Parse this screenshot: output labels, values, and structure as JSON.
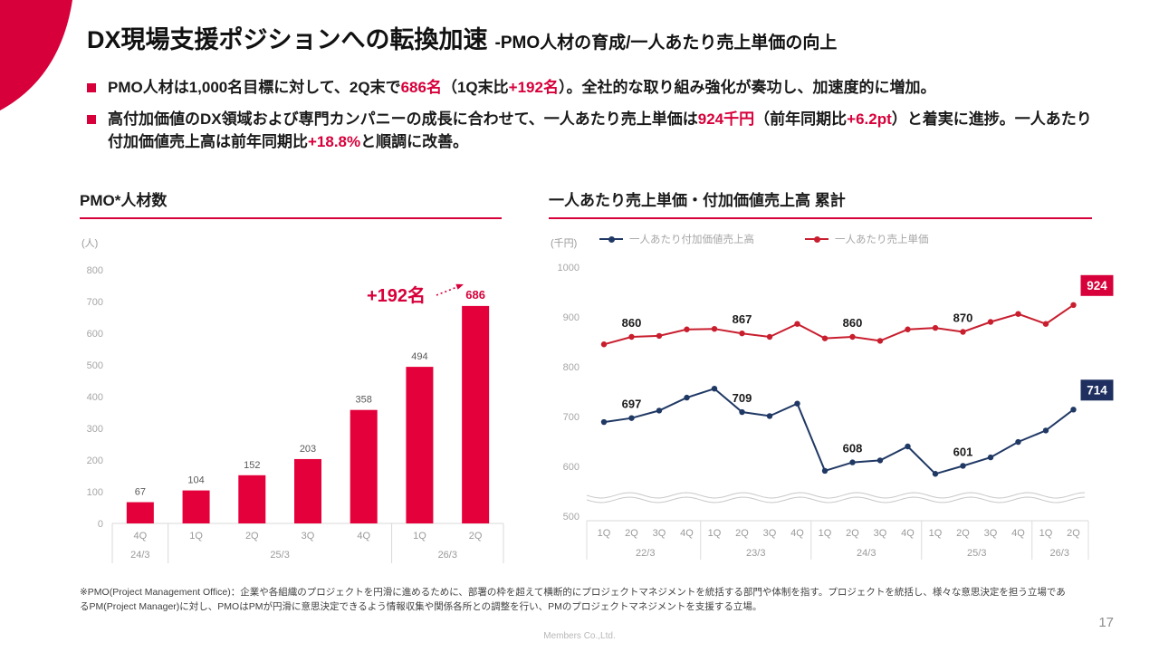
{
  "header": {
    "title_main": "DX現場支援ポジションへの転換加速",
    "title_sub": "-PMO人材の育成/一人あたり売上単価の向上"
  },
  "bullets": [
    {
      "segments": [
        {
          "text": "PMO人材は1,000名目標に対して、2Q末で",
          "accent": false
        },
        {
          "text": "686名",
          "accent": true
        },
        {
          "text": "（1Q末比",
          "accent": false
        },
        {
          "text": "+192名",
          "accent": true
        },
        {
          "text": "）。全社的な取り組み強化が奏功し、加速度的に増加。",
          "accent": false
        }
      ]
    },
    {
      "segments": [
        {
          "text": "高付加価値のDX領域および専門カンパニーの成長に合わせて、一人あたり売上単価は",
          "accent": false
        },
        {
          "text": "924千円",
          "accent": true
        },
        {
          "text": "（前年同期比",
          "accent": false
        },
        {
          "text": "+6.2pt",
          "accent": true
        },
        {
          "text": "）と着実に進捗。一人あたり付加価値売上高は前年同期比",
          "accent": false
        },
        {
          "text": "+18.8%",
          "accent": true
        },
        {
          "text": "と順調に改善。",
          "accent": false
        }
      ]
    }
  ],
  "colors": {
    "accent": "#d7003a",
    "bar": "#e4003a",
    "line_blue": "#1f3864",
    "line_red": "#c81e2e",
    "box_blue": "#1f3060",
    "box_red": "#d7003a",
    "axis_text": "#a6a6a6",
    "value_label": "#595959",
    "separator": "#d9d9d9",
    "tick_text": "#9a9a9a"
  },
  "chart_data": [
    {
      "type": "bar",
      "title": "PMO*人材数",
      "unit": "(人)",
      "categories": [
        "4Q",
        "1Q",
        "2Q",
        "3Q",
        "4Q",
        "1Q",
        "2Q"
      ],
      "year_groups": [
        {
          "label": "24/3",
          "span": 1
        },
        {
          "label": "25/3",
          "span": 4
        },
        {
          "label": "26/3",
          "span": 2
        }
      ],
      "values": [
        67,
        104,
        152,
        203,
        358,
        494,
        686
      ],
      "ylim": [
        0,
        800
      ],
      "ytick_step": 100,
      "annotation": "+192名",
      "bar_color": "#e4003a",
      "grid": false,
      "legend_position": "none"
    },
    {
      "type": "line",
      "title": "一人あたり売上単価・付加価値売上高 累計",
      "unit": "(千円)",
      "categories": [
        "1Q",
        "2Q",
        "3Q",
        "4Q",
        "1Q",
        "2Q",
        "3Q",
        "4Q",
        "1Q",
        "2Q",
        "3Q",
        "4Q",
        "1Q",
        "2Q",
        "3Q",
        "4Q",
        "1Q",
        "2Q"
      ],
      "year_groups": [
        {
          "label": "22/3",
          "span": 4
        },
        {
          "label": "23/3",
          "span": 4
        },
        {
          "label": "24/3",
          "span": 4
        },
        {
          "label": "25/3",
          "span": 4
        },
        {
          "label": "26/3",
          "span": 2
        }
      ],
      "series": [
        {
          "name": "一人あたり付加価値売上高",
          "color": "#1f3864",
          "values": [
            689,
            697,
            712,
            738,
            756,
            709,
            701,
            726,
            591,
            608,
            612,
            640,
            585,
            601,
            618,
            649,
            672,
            714
          ],
          "labeled_points": [
            {
              "index": 1,
              "value": "697"
            },
            {
              "index": 5,
              "value": "709"
            },
            {
              "index": 9,
              "value": "608"
            },
            {
              "index": 13,
              "value": "601"
            }
          ],
          "final_label": {
            "index": 17,
            "value": "714",
            "box_color": "#1f3060"
          }
        },
        {
          "name": "一人あたり売上単価",
          "color": "#c81e2e",
          "values": [
            845,
            860,
            862,
            875,
            876,
            867,
            860,
            886,
            857,
            860,
            852,
            875,
            878,
            870,
            890,
            906,
            886,
            924
          ],
          "labeled_points": [
            {
              "index": 1,
              "value": "860"
            },
            {
              "index": 5,
              "value": "867"
            },
            {
              "index": 9,
              "value": "860"
            },
            {
              "index": 13,
              "value": "870"
            }
          ],
          "final_label": {
            "index": 17,
            "value": "924",
            "box_color": "#d7003a"
          }
        }
      ],
      "ylim": [
        500,
        1000
      ],
      "ytick_step": 100,
      "axis_break": true,
      "grid": false,
      "legend_position": "top"
    }
  ],
  "footnote": "※PMO(Project Management Office)：企業や各組織のプロジェクトを円滑に進めるために、部署の枠を超えて横断的にプロジェクトマネジメントを統括する部門や体制を指す。プロジェクトを統括し、様々な意思決定を担う立場であるPM(Project Manager)に対し、PMOはPMが円滑に意思決定できるよう情報収集や関係各所との調整を行い、PMのプロジェクトマネジメントを支援する立場。",
  "footer": {
    "company": "Members Co.,Ltd.",
    "page": "17"
  }
}
